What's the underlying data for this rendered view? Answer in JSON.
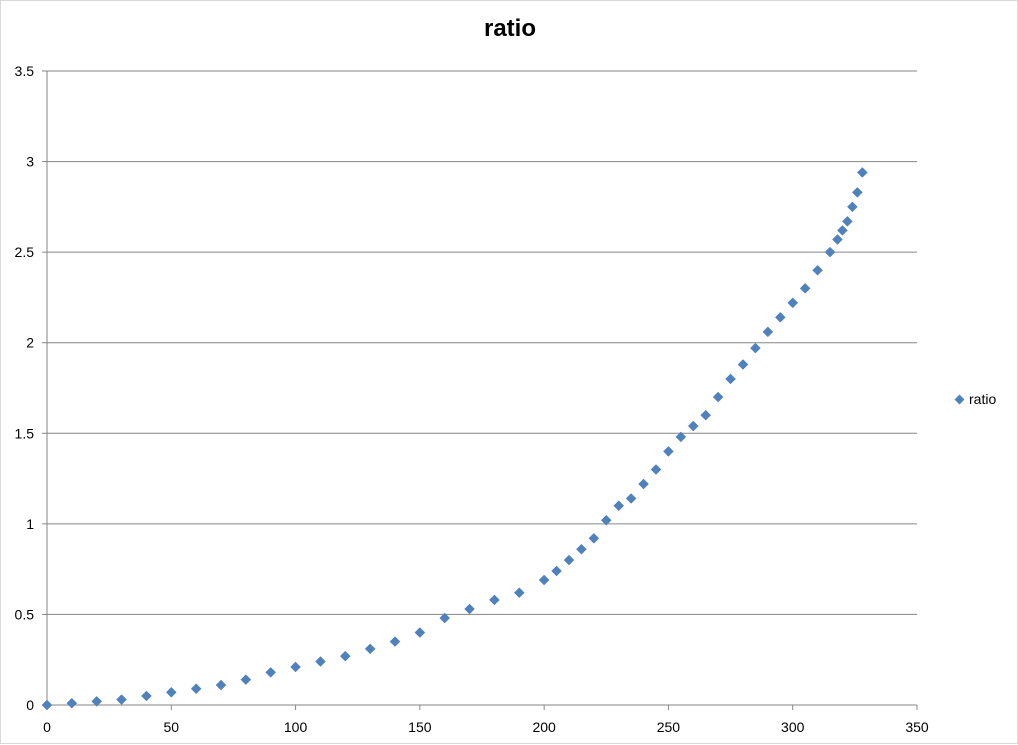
{
  "chart_data": {
    "type": "scatter",
    "title": "ratio",
    "xlabel": "",
    "ylabel": "",
    "xlim": [
      0,
      350
    ],
    "ylim": [
      0,
      3.5
    ],
    "x_ticks": [
      "0",
      "50",
      "100",
      "150",
      "200",
      "250",
      "300",
      "350"
    ],
    "y_ticks": [
      "0",
      "0.5",
      "1",
      "1.5",
      "2",
      "2.5",
      "3",
      "3.5"
    ],
    "grid": "horizontal",
    "legend_position": "right",
    "marker": "diamond",
    "series": [
      {
        "name": "ratio",
        "color": "#4f81bd",
        "x": [
          0,
          10,
          20,
          30,
          40,
          50,
          60,
          70,
          80,
          90,
          100,
          110,
          120,
          130,
          140,
          150,
          160,
          170,
          180,
          190,
          200,
          205,
          210,
          215,
          220,
          225,
          230,
          235,
          240,
          245,
          250,
          255,
          260,
          265,
          270,
          275,
          280,
          285,
          290,
          295,
          300,
          305,
          310,
          315,
          318,
          320,
          322,
          324,
          326,
          328
        ],
        "y": [
          0.0,
          0.01,
          0.02,
          0.03,
          0.05,
          0.07,
          0.09,
          0.11,
          0.14,
          0.18,
          0.21,
          0.24,
          0.27,
          0.31,
          0.35,
          0.4,
          0.48,
          0.53,
          0.58,
          0.62,
          0.69,
          0.74,
          0.8,
          0.86,
          0.92,
          1.02,
          1.1,
          1.14,
          1.22,
          1.3,
          1.4,
          1.48,
          1.54,
          1.6,
          1.7,
          1.8,
          1.88,
          1.97,
          2.06,
          2.14,
          2.22,
          2.3,
          2.4,
          2.5,
          2.57,
          2.62,
          2.67,
          2.75,
          2.83,
          2.94
        ]
      }
    ]
  }
}
